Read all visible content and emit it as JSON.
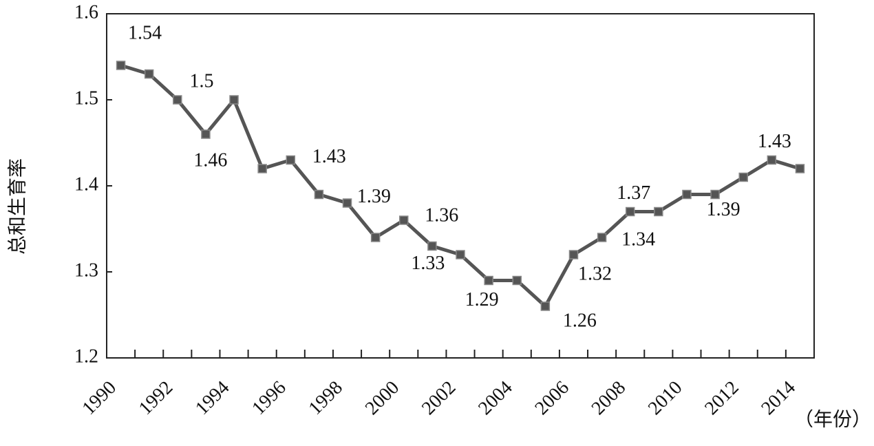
{
  "chart_data": {
    "type": "line",
    "y_label": "总和生育率",
    "x_label": "（年份）",
    "categories": [
      "1990",
      null,
      "1992",
      null,
      "1994",
      null,
      "1996",
      null,
      "1998",
      null,
      "2000",
      null,
      "2002",
      null,
      "2004",
      null,
      "2006",
      null,
      "2008",
      null,
      "2010",
      null,
      "2012",
      null,
      "2014"
    ],
    "series": [
      {
        "name": "总和生育率",
        "color": "#555555",
        "values": [
          1.54,
          1.53,
          1.5,
          1.46,
          1.5,
          1.42,
          1.43,
          1.39,
          1.38,
          1.34,
          1.36,
          1.33,
          1.32,
          1.29,
          1.29,
          1.26,
          1.32,
          1.34,
          1.37,
          1.37,
          1.39,
          1.39,
          1.41,
          1.43,
          1.42
        ],
        "value_labels": [
          "1.54",
          null,
          null,
          "1.46",
          "1.5",
          null,
          "1.43",
          "1.39",
          null,
          null,
          "1.36",
          "1.33",
          null,
          "1.29",
          null,
          "1.26",
          "1.32",
          "1.34",
          "1.37",
          null,
          null,
          "1.39",
          null,
          "1.43",
          null
        ]
      }
    ],
    "ylim": [
      1.2,
      1.6
    ],
    "yticks": [
      1.2,
      1.3,
      1.4,
      1.5,
      1.6
    ]
  }
}
